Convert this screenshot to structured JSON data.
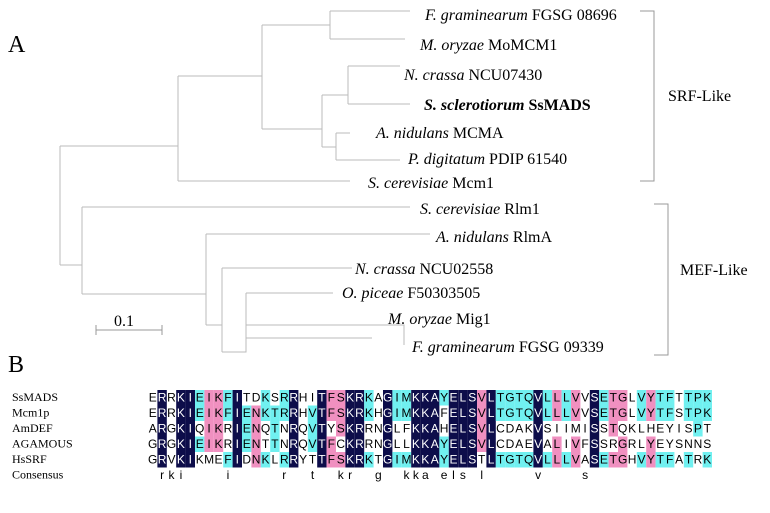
{
  "panel_a": {
    "label": "A",
    "scale_bar_label": "0.1",
    "groups": [
      {
        "name": "SRF-Like"
      },
      {
        "name": "MEF-Like"
      }
    ],
    "taxa": [
      {
        "species": "F. graminearum",
        "gene": "FGSG 08696",
        "bold": false
      },
      {
        "species": "M. oryzae",
        "gene": "MoMCM1",
        "bold": false
      },
      {
        "species": "N. crassa",
        "gene": "NCU07430",
        "bold": false
      },
      {
        "species": "S. sclerotiorum",
        "gene": "SsMADS",
        "bold": true
      },
      {
        "species": "A. nidulans",
        "gene": "MCMA",
        "bold": false
      },
      {
        "species": "P. digitatum",
        "gene": "PDIP 61540",
        "bold": false
      },
      {
        "species": "S. cerevisiae",
        "gene": "Mcm1",
        "bold": false
      },
      {
        "species": "S. cerevisiae",
        "gene": "Rlm1",
        "bold": false
      },
      {
        "species": "A. nidulans",
        "gene": "RlmA",
        "bold": false
      },
      {
        "species": "N. crassa",
        "gene": "NCU02558",
        "bold": false
      },
      {
        "species": "O. piceae",
        "gene": "F50303505",
        "bold": false
      },
      {
        "species": "M. oryzae",
        "gene": "Mig1",
        "bold": false
      },
      {
        "species": "F. graminearum",
        "gene": "FGSG 09339",
        "bold": false
      }
    ]
  },
  "panel_b": {
    "label": "B",
    "colors": {
      "identical": "#0d0d4a",
      "similar": "#f090c0",
      "conserved": "#70f0f0"
    },
    "sequences": [
      {
        "name": "SsMADS",
        "residues": "ERRKIEIKFITDKSRRHITFSKRKAGIMKKAYELSVLTGTQVLLLVVSETGLVYTFTTPK",
        "shading": "NNNNNNNNPNNNNNNNPNNPNNNNNNCNNNNNNNNNNCNNNNNNNNNNNNNNNNNNNNNN"
      },
      {
        "name": "Mcm1p",
        "residues": "ERRKIEIKFIENKTRRHVTFSKRKHGIMKKAFELSVLTGTQVLLLVVSETGLVYTFSTPK",
        "shading": "NNNNNNNNNNNNNNNNNNNNNNNNNNNNNNNNNNNNNNNNNNNNNNNNNNNNNNNNNNNN"
      },
      {
        "name": "AmDEF",
        "residues": "ARGKIQIKRIENQTNRQVTYSKRRNGLFKKAHELSVLCDAKVSIIMISSTQKLHEYISPT",
        "shading": "NNNNNNNNNNNNNNNNNNNNNNNNNNNNNNNNNNNNNNNNNNNNNNNNNNNNNNNNNNNN"
      },
      {
        "name": "AGAMOUS",
        "residues": "GRGKIEIKRIENTTNRQVTFCKRRNGLLKKAYELSVLCDAEVALIVFSSRGRLYEYSNNS",
        "shading": "NNNNNNNNNNNNNNNNNNNNNNNNNNNNNNNNNNNNNNNNNNNNNNNNNNNNNNNNNNNN"
      },
      {
        "name": "HsSRF",
        "residues": "GRVKIKMEFIDNKLRRYTTFSKRKTGIMKKAYELSTLTGTQVLLLVASETGHVYTFATRK",
        "shading": "NNNNNNNNNNNNNNNNNNNNNNNNNNNNNNNNNNNNNNNNNNNNNNNNNNNNNNNNNNNN"
      }
    ],
    "consensus": {
      "name": "Consensus",
      "residues": " rki    i     r  t  kr  g  kka els l     v    s            "
    }
  }
}
